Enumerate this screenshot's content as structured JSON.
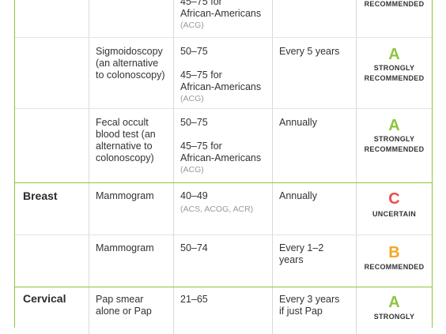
{
  "colors": {
    "border": "#8cc63f",
    "grade_a": "#8cc63f",
    "grade_b": "#f5a623",
    "grade_c": "#e94e4e"
  },
  "colon_first": {
    "ages_partial": "45–75 for",
    "ages_partial_2": "African-Americans",
    "source": "(ACG)",
    "rating_tail": "RECOMMENDED"
  },
  "sigmoidoscopy": {
    "test": "Sigmoidoscopy (an alternative to colonoscopy)",
    "test_lines": [
      "Sigmoidoscopy",
      "(an alternative",
      "to colonoscopy)"
    ],
    "ages": "50–75",
    "ages_alt_lines": [
      "45–75 for",
      "African-Americans"
    ],
    "source": "(ACG)",
    "frequency": "Every 5 years",
    "grade": "A",
    "rating_lines": [
      "STRONGLY",
      "RECOMMENDED"
    ]
  },
  "fecal": {
    "test_lines": [
      "Fecal occult",
      "blood test (an",
      "alternative to",
      "colonoscopy)"
    ],
    "ages": "50–75",
    "ages_alt_lines": [
      "45–75 for",
      "African-Americans"
    ],
    "source": "(ACG)",
    "frequency": "Annually",
    "grade": "A",
    "rating_lines": [
      "STRONGLY",
      "RECOMMENDED"
    ]
  },
  "breast": {
    "label": "Breast",
    "rows": [
      {
        "test": "Mammogram",
        "ages": "40–49",
        "source": "(ACS, ACOG, ACR)",
        "frequency": "Annually",
        "grade": "C",
        "rating": "UNCERTAIN"
      },
      {
        "test": "Mammogram",
        "ages": "50–74",
        "frequency_lines": [
          "Every 1–2",
          "years"
        ],
        "grade": "B",
        "rating": "RECOMMENDED"
      }
    ]
  },
  "cervical": {
    "label": "Cervical",
    "test_lines": [
      "Pap smear",
      "alone or Pap"
    ],
    "ages": "21–65",
    "frequency_lines": [
      "Every 3 years",
      "if just Pap"
    ],
    "grade": "A",
    "rating_partial": "STRONGLY"
  }
}
